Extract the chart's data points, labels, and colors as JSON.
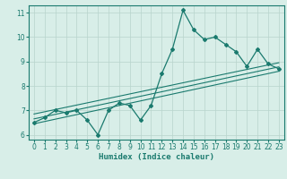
{
  "x": [
    0,
    1,
    2,
    3,
    4,
    5,
    6,
    7,
    8,
    9,
    10,
    11,
    12,
    13,
    14,
    15,
    16,
    17,
    18,
    19,
    20,
    21,
    22,
    23
  ],
  "y_main": [
    6.5,
    6.7,
    7.0,
    6.9,
    7.0,
    6.6,
    6.0,
    7.0,
    7.3,
    7.2,
    6.6,
    7.2,
    8.5,
    9.5,
    11.1,
    10.3,
    9.9,
    10.0,
    9.7,
    9.4,
    8.8,
    9.5,
    8.9,
    8.7
  ],
  "line_color": "#1a7a6e",
  "background_color": "#d8eee8",
  "grid_color": "#b8d4cc",
  "xlabel": "Humidex (Indice chaleur)",
  "xlim": [
    -0.5,
    23.5
  ],
  "ylim": [
    5.8,
    11.3
  ],
  "yticks": [
    6,
    7,
    8,
    9,
    10,
    11
  ],
  "xticks": [
    0,
    1,
    2,
    3,
    4,
    5,
    6,
    7,
    8,
    9,
    10,
    11,
    12,
    13,
    14,
    15,
    16,
    17,
    18,
    19,
    20,
    21,
    22,
    23
  ],
  "reg_line1_start": 6.45,
  "reg_line1_end": 8.6,
  "reg_line2_start": 6.65,
  "reg_line2_end": 8.78,
  "reg_line3_start": 6.85,
  "reg_line3_end": 8.95
}
